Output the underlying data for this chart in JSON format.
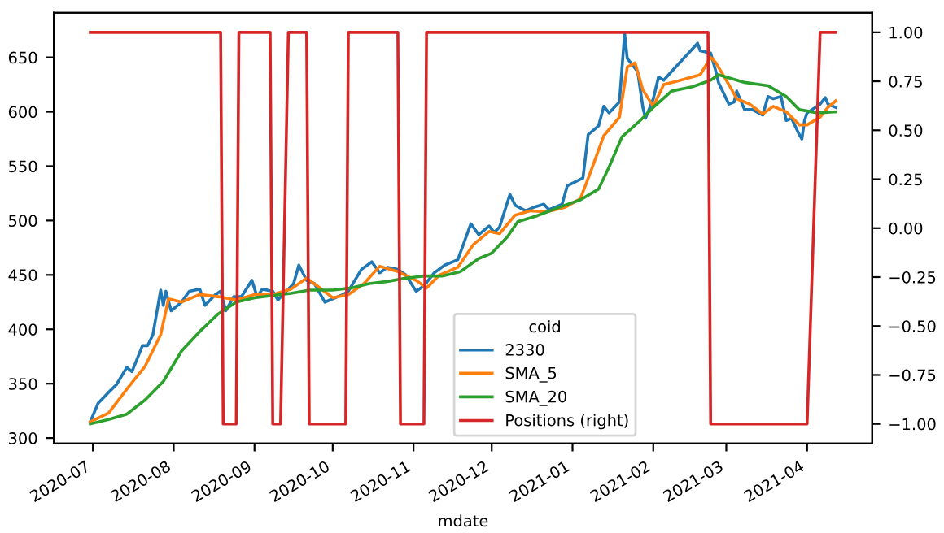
{
  "chart_data": {
    "type": "line",
    "xlabel": "mdate",
    "legend_title": "coid",
    "legend": "bottom",
    "grid": false,
    "xlim": [
      "2020-06-16",
      "2021-04-26"
    ],
    "xticks": [
      "2020-07",
      "2020-08",
      "2020-09",
      "2020-10",
      "2020-11",
      "2020-12",
      "2021-01",
      "2021-02",
      "2021-03",
      "2021-04"
    ],
    "ylim": [
      295,
      691
    ],
    "yticks": [
      300,
      350,
      400,
      450,
      500,
      550,
      600,
      650
    ],
    "y2lim": [
      -1.1,
      1.1
    ],
    "y2ticks": [
      {
        "value": -1,
        "label": "−1.00"
      },
      {
        "value": -0.75,
        "label": "−0.75"
      },
      {
        "value": -0.5,
        "label": "−0.50"
      },
      {
        "value": -0.25,
        "label": "−0.25"
      },
      {
        "value": 0,
        "label": "0.00"
      },
      {
        "value": 0.25,
        "label": "0.25"
      },
      {
        "value": 0.5,
        "label": "0.50"
      },
      {
        "value": 0.75,
        "label": "0.75"
      },
      {
        "value": 1,
        "label": "1.00"
      }
    ],
    "series": [
      {
        "name": "2330",
        "color": "#1f77b4",
        "x": [
          "2020-06-30",
          "2020-07-03",
          "2020-07-07",
          "2020-07-10",
          "2020-07-14",
          "2020-07-16",
          "2020-07-20",
          "2020-07-22",
          "2020-07-24",
          "2020-07-27",
          "2020-07-28",
          "2020-07-29",
          "2020-07-31",
          "2020-08-04",
          "2020-08-07",
          "2020-08-11",
          "2020-08-13",
          "2020-08-17",
          "2020-08-19",
          "2020-08-21",
          "2020-08-24",
          "2020-08-27",
          "2020-08-31",
          "2020-09-02",
          "2020-09-04",
          "2020-09-08",
          "2020-09-10",
          "2020-09-14",
          "2020-09-16",
          "2020-09-18",
          "2020-09-21",
          "2020-09-24",
          "2020-09-28",
          "2020-10-05",
          "2020-10-07",
          "2020-10-12",
          "2020-10-16",
          "2020-10-19",
          "2020-10-22",
          "2020-10-26",
          "2020-10-29",
          "2020-11-02",
          "2020-11-05",
          "2020-11-09",
          "2020-11-13",
          "2020-11-18",
          "2020-11-23",
          "2020-11-26",
          "2020-11-30",
          "2020-12-02",
          "2020-12-04",
          "2020-12-08",
          "2020-12-10",
          "2020-12-14",
          "2020-12-17",
          "2020-12-21",
          "2020-12-23",
          "2020-12-28",
          "2020-12-30",
          "2021-01-05",
          "2021-01-07",
          "2021-01-11",
          "2021-01-13",
          "2021-01-15",
          "2021-01-19",
          "2021-01-21",
          "2021-01-22",
          "2021-01-26",
          "2021-01-28",
          "2021-01-29",
          "2021-02-01",
          "2021-02-03",
          "2021-02-05",
          "2021-02-08",
          "2021-02-18",
          "2021-02-19",
          "2021-02-23",
          "2021-02-25",
          "2021-02-26",
          "2021-03-02",
          "2021-03-04",
          "2021-03-05",
          "2021-03-08",
          "2021-03-11",
          "2021-03-15",
          "2021-03-17",
          "2021-03-19",
          "2021-03-22",
          "2021-03-24",
          "2021-03-26",
          "2021-03-29",
          "2021-03-30",
          "2021-03-31",
          "2021-04-01",
          "2021-04-06",
          "2021-04-08",
          "2021-04-09",
          "2021-04-12"
        ],
        "values": [
          315,
          332,
          342,
          349,
          365,
          361,
          385,
          385,
          395,
          436,
          422,
          435,
          417,
          425,
          435,
          437,
          422,
          432,
          435,
          417,
          430,
          430,
          445,
          430,
          437,
          435,
          427,
          437,
          442,
          459,
          445,
          442,
          425,
          432,
          435,
          455,
          462,
          452,
          457,
          455,
          450,
          435,
          440,
          452,
          459,
          464,
          497,
          487,
          495,
          489,
          494,
          524,
          514,
          509,
          512,
          515,
          510,
          515,
          532,
          539,
          579,
          587,
          605,
          599,
          609,
          672,
          649,
          637,
          604,
          594,
          612,
          632,
          629,
          637,
          663,
          656,
          654,
          637,
          627,
          607,
          609,
          619,
          602,
          602,
          597,
          614,
          612,
          614,
          592,
          594,
          579,
          575,
          592,
          599,
          607,
          613,
          607,
          604
        ]
      },
      {
        "name": "SMA_5",
        "color": "#ff7f0e",
        "x": [
          "2020-06-30",
          "2020-07-07",
          "2020-07-14",
          "2020-07-21",
          "2020-07-27",
          "2020-07-30",
          "2020-08-04",
          "2020-08-11",
          "2020-08-18",
          "2020-08-25",
          "2020-09-01",
          "2020-09-08",
          "2020-09-15",
          "2020-09-21",
          "2020-09-25",
          "2020-10-01",
          "2020-10-07",
          "2020-10-13",
          "2020-10-19",
          "2020-10-26",
          "2020-11-02",
          "2020-11-06",
          "2020-11-11",
          "2020-11-18",
          "2020-11-24",
          "2020-11-30",
          "2020-12-04",
          "2020-12-10",
          "2020-12-16",
          "2020-12-22",
          "2020-12-29",
          "2021-01-04",
          "2021-01-08",
          "2021-01-13",
          "2021-01-19",
          "2021-01-22",
          "2021-01-25",
          "2021-01-28",
          "2021-02-01",
          "2021-02-05",
          "2021-02-10",
          "2021-02-19",
          "2021-02-23",
          "2021-02-25",
          "2021-03-02",
          "2021-03-05",
          "2021-03-10",
          "2021-03-15",
          "2021-03-19",
          "2021-03-24",
          "2021-03-29",
          "2021-04-01",
          "2021-04-06",
          "2021-04-09",
          "2021-04-12"
        ],
        "values": [
          315,
          323,
          345,
          366,
          395,
          428,
          425,
          432,
          430,
          427,
          432,
          432,
          437,
          447,
          440,
          429,
          432,
          442,
          458,
          453,
          445,
          438,
          450,
          457,
          478,
          490,
          488,
          505,
          509,
          508,
          512,
          520,
          545,
          578,
          595,
          641,
          645,
          620,
          605,
          625,
          628,
          634,
          650,
          645,
          625,
          612,
          607,
          598,
          605,
          600,
          588,
          588,
          595,
          604,
          610
        ]
      },
      {
        "name": "SMA_20",
        "color": "#2ca02c",
        "x": [
          "2020-06-30",
          "2020-07-07",
          "2020-07-14",
          "2020-07-21",
          "2020-07-28",
          "2020-08-04",
          "2020-08-11",
          "2020-08-18",
          "2020-08-25",
          "2020-09-01",
          "2020-09-08",
          "2020-09-15",
          "2020-09-22",
          "2020-10-01",
          "2020-10-08",
          "2020-10-15",
          "2020-10-22",
          "2020-10-29",
          "2020-11-05",
          "2020-11-12",
          "2020-11-19",
          "2020-11-26",
          "2020-12-01",
          "2020-12-07",
          "2020-12-11",
          "2020-12-18",
          "2020-12-29",
          "2021-01-04",
          "2021-01-11",
          "2021-01-15",
          "2021-01-20",
          "2021-01-27",
          "2021-02-01",
          "2021-02-08",
          "2021-02-16",
          "2021-02-23",
          "2021-02-26",
          "2021-03-08",
          "2021-03-17",
          "2021-03-24",
          "2021-03-29",
          "2021-04-05",
          "2021-04-12"
        ],
        "values": [
          313,
          317,
          322,
          335,
          352,
          380,
          398,
          414,
          425,
          429,
          431,
          433,
          436,
          436,
          438,
          442,
          444,
          447,
          449,
          449,
          453,
          465,
          470,
          485,
          499,
          504,
          514,
          519,
          529,
          549,
          577,
          592,
          604,
          619,
          623,
          629,
          634,
          627,
          624,
          614,
          602,
          599,
          600
        ]
      },
      {
        "name": "Positions (right)",
        "color": "#d62728",
        "axis": "y2",
        "x": [
          "2020-06-30",
          "2020-08-19",
          "2020-08-20",
          "2020-08-25",
          "2020-08-26",
          "2020-09-07",
          "2020-09-08",
          "2020-09-11",
          "2020-09-14",
          "2020-09-21",
          "2020-09-22",
          "2020-10-06",
          "2020-10-07",
          "2020-10-26",
          "2020-10-27",
          "2020-11-05",
          "2020-11-06",
          "2021-02-22",
          "2021-02-23",
          "2021-04-01",
          "2021-04-06",
          "2021-04-12"
        ],
        "values": [
          1,
          1,
          -1,
          -1,
          1,
          1,
          -1,
          -1,
          1,
          1,
          -1,
          -1,
          1,
          1,
          -1,
          -1,
          1,
          1,
          -1,
          -1,
          1,
          1
        ]
      }
    ]
  }
}
